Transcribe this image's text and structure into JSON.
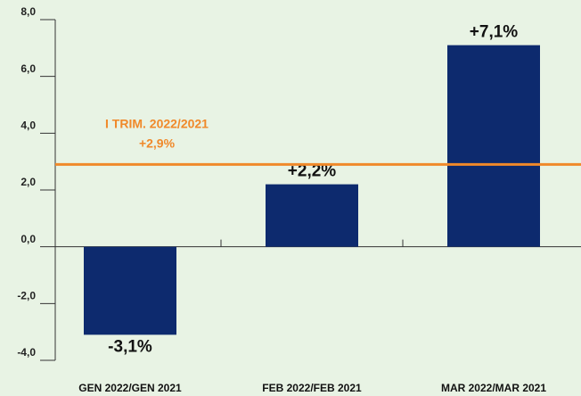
{
  "chart_data": {
    "type": "bar",
    "categories": [
      "GEN 2022/GEN 2021",
      "FEB 2022/FEB 2021",
      "MAR 2022/MAR 2021"
    ],
    "values": [
      -3.1,
      2.2,
      7.1
    ],
    "value_labels": [
      "-3,1%",
      "+2,2%",
      "+7,1%"
    ],
    "color": "#0d2a6e",
    "ylim": [
      -4,
      8
    ],
    "yticks": [
      {
        "value": -4,
        "label": "-4,0"
      },
      {
        "value": -2,
        "label": "-2,0"
      },
      {
        "value": 0,
        "label": "0,0"
      },
      {
        "value": 2,
        "label": "2,0"
      },
      {
        "value": 4,
        "label": "4,0"
      },
      {
        "value": 6,
        "label": "6,0"
      },
      {
        "value": 8,
        "label": "8,0"
      }
    ],
    "reference_line": {
      "value": 2.9,
      "label": "I TRIM. 2022/2021",
      "value_label": "+2,9%",
      "color": "#f0892a"
    }
  }
}
